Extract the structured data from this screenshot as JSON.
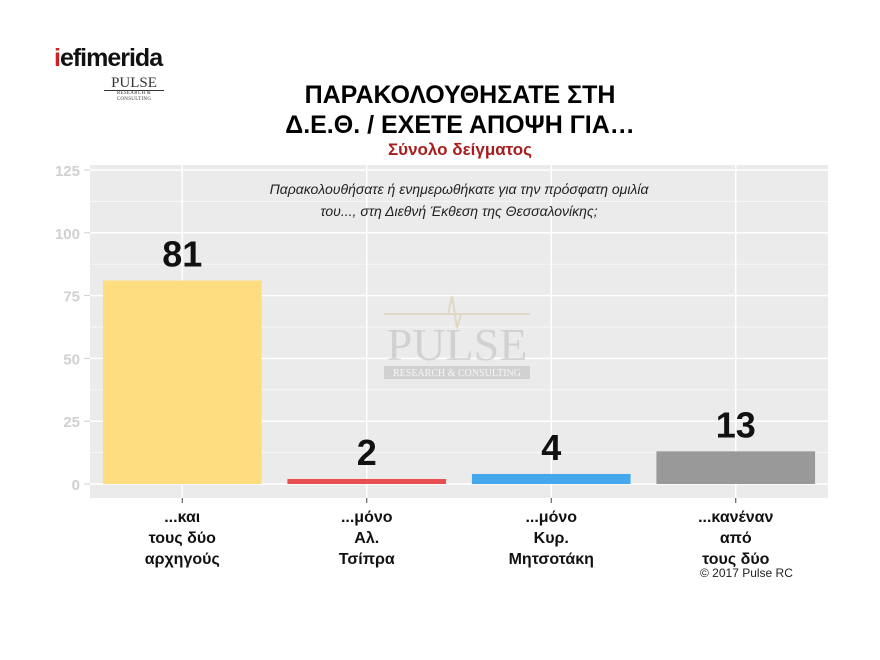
{
  "logo": {
    "brand_i": "i",
    "brand_rest": "efimerida",
    "sub": "PULSE",
    "sub2": "RESEARCH & CONSULTING"
  },
  "title_line1": "ΠΑΡΑΚΟΛΟΥΘΗΣΑΤΕ ΣΤΗ",
  "title_line2": "Δ.Ε.Θ. / ΕΧΕΤΕ ΑΠΟΨΗ ΓΙΑ…",
  "subtitle": "Σύνολο δείγματος",
  "credit": "© 2017 Pulse RC",
  "watermark": {
    "main": "PULSE",
    "sub": "RESEARCH & CONSULTING"
  },
  "colors": {
    "panel": "#ebebeb",
    "grid": "#ffffff",
    "subtitle": "#a71d1d"
  },
  "chart_data": {
    "type": "bar",
    "question_line1": "Παρακολουθήσατε ή ενημερωθήκατε για την πρόσφατη ομιλία",
    "question_line2": "του..., στη Διεθνή Έκθεση της Θεσσαλονίκης;",
    "categories": [
      [
        "...και",
        "τους δύο",
        "αρχηγούς"
      ],
      [
        "...μόνο",
        "Αλ.",
        "Τσίπρα"
      ],
      [
        "...μόνο",
        "Κυρ.",
        "Μητσοτάκη"
      ],
      [
        "...κανέναν",
        "από",
        "τους δύο"
      ]
    ],
    "values": [
      81,
      2,
      4,
      13
    ],
    "colors": [
      "#fedd80",
      "#e85050",
      "#45a8ec",
      "#999999"
    ],
    "ylim": [
      0,
      125
    ],
    "yticks": [
      0,
      25,
      50,
      75,
      100,
      125
    ],
    "grid": true
  }
}
